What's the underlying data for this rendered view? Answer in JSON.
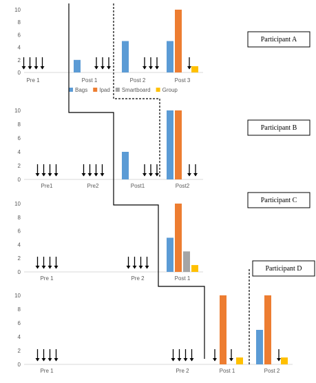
{
  "colors": {
    "bags": "#5B9BD5",
    "ipad": "#ED7D31",
    "smartboard": "#A5A5A5",
    "group": "#FFC000",
    "axis": "#D9D9D9",
    "text": "#595959",
    "phase_line": "#000000"
  },
  "legend": {
    "items": [
      {
        "label": "Bags",
        "color_key": "bags"
      },
      {
        "label": "Ipad",
        "color_key": "ipad"
      },
      {
        "label": "Smartboard",
        "color_key": "smartboard"
      },
      {
        "label": "Group",
        "color_key": "group"
      }
    ]
  },
  "chart_data": [
    {
      "type": "bar",
      "participant": "Participant A",
      "ylim": [
        0,
        10
      ],
      "yticks": [
        0,
        2,
        4,
        6,
        8,
        10
      ],
      "categories": [
        "Pre 1",
        "Post 1",
        "Post 2",
        "Post 3"
      ],
      "series": [
        {
          "name": "Bags",
          "values": [
            0,
            2,
            5,
            5
          ]
        },
        {
          "name": "Ipad",
          "values": [
            0,
            0,
            0,
            10
          ]
        },
        {
          "name": "Smartboard",
          "values": [
            0,
            0,
            0,
            0
          ]
        },
        {
          "name": "Group",
          "values": [
            0,
            0,
            0,
            1
          ]
        }
      ],
      "zero_markers": [
        4,
        3,
        3,
        1
      ]
    },
    {
      "type": "bar",
      "participant": "Participant B",
      "ylim": [
        0,
        10
      ],
      "yticks": [
        0,
        2,
        4,
        6,
        8,
        10
      ],
      "categories": [
        "Pre1",
        "Pre2",
        "Post1",
        "Post2"
      ],
      "series": [
        {
          "name": "Bags",
          "values": [
            0,
            0,
            4,
            10
          ]
        },
        {
          "name": "Ipad",
          "values": [
            0,
            0,
            0,
            10
          ]
        },
        {
          "name": "Smartboard",
          "values": [
            0,
            0,
            0,
            0
          ]
        },
        {
          "name": "Group",
          "values": [
            0,
            0,
            0,
            0
          ]
        }
      ],
      "zero_markers": [
        4,
        4,
        3,
        2
      ]
    },
    {
      "type": "bar",
      "participant": "Participant C",
      "ylim": [
        0,
        10
      ],
      "yticks": [
        0,
        2,
        4,
        6,
        8,
        10
      ],
      "categories": [
        "Pre 1",
        "Pre 2",
        "Post 1"
      ],
      "series": [
        {
          "name": "Bags",
          "values": [
            0,
            0,
            5
          ]
        },
        {
          "name": "Ipad",
          "values": [
            0,
            0,
            10
          ]
        },
        {
          "name": "Smartboard",
          "values": [
            0,
            0,
            3
          ]
        },
        {
          "name": "Group",
          "values": [
            0,
            0,
            1
          ]
        }
      ],
      "zero_markers": [
        4,
        4,
        0
      ]
    },
    {
      "type": "bar",
      "participant": "Participant D",
      "ylim": [
        0,
        10
      ],
      "yticks": [
        0,
        2,
        4,
        6,
        8,
        10
      ],
      "categories": [
        "Pre 1",
        "Pre 2",
        "Post 1",
        "Post 2"
      ],
      "series": [
        {
          "name": "Bags",
          "values": [
            0,
            0,
            0,
            5
          ]
        },
        {
          "name": "Ipad",
          "values": [
            0,
            0,
            10,
            10
          ]
        },
        {
          "name": "Smartboard",
          "values": [
            0,
            0,
            0,
            0
          ]
        },
        {
          "name": "Group",
          "values": [
            0,
            0,
            1,
            1
          ]
        }
      ],
      "zero_markers": [
        4,
        4,
        2,
        1
      ]
    }
  ]
}
